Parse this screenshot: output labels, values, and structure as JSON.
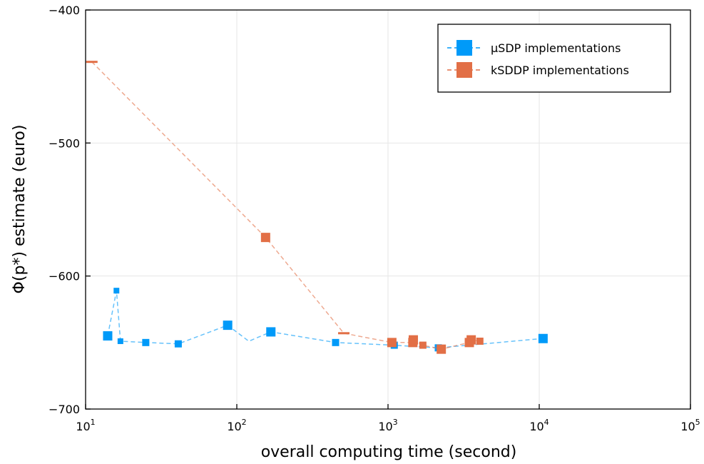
{
  "chart_data": {
    "type": "scatter",
    "title": "",
    "xlabel": "overall computing time (second)",
    "ylabel": "Φ(p*) estimate (euro)",
    "x_scale": "log10",
    "xlim": [
      10,
      100000
    ],
    "ylim": [
      -700,
      -400
    ],
    "grid": true,
    "legend_position": "top-right",
    "x_ticks": [
      {
        "base": "10",
        "exp": "1",
        "value": 10
      },
      {
        "base": "10",
        "exp": "2",
        "value": 100
      },
      {
        "base": "10",
        "exp": "3",
        "value": 1000
      },
      {
        "base": "10",
        "exp": "4",
        "value": 10000
      },
      {
        "base": "10",
        "exp": "5",
        "value": 100000
      }
    ],
    "y_ticks": [
      {
        "label": "−400",
        "value": -400
      },
      {
        "label": "−500",
        "value": -500
      },
      {
        "label": "−600",
        "value": -600
      },
      {
        "label": "−700",
        "value": -700
      }
    ],
    "series": [
      {
        "name": "µSDP implementations",
        "color": "#009af9",
        "marker": "square",
        "line": "dashed",
        "points": [
          {
            "x": 14,
            "y": -645,
            "size": "large"
          },
          {
            "x": 16,
            "y": -611,
            "size": "small"
          },
          {
            "x": 17,
            "y": -649,
            "size": "small"
          },
          {
            "x": 25,
            "y": -650,
            "size": "medium"
          },
          {
            "x": 41,
            "y": -651,
            "size": "medium"
          },
          {
            "x": 87,
            "y": -637,
            "size": "large"
          },
          {
            "x": 120,
            "y": -649,
            "size": "none"
          },
          {
            "x": 168,
            "y": -642,
            "size": "large"
          },
          {
            "x": 450,
            "y": -650,
            "size": "medium"
          },
          {
            "x": 1100,
            "y": -652,
            "size": "medium"
          },
          {
            "x": 2150,
            "y": -654,
            "size": "medium"
          },
          {
            "x": 10600,
            "y": -647,
            "size": "large"
          }
        ]
      },
      {
        "name": "kSDDP implementations",
        "color": "#e26f46",
        "marker": "square",
        "line": "dashed",
        "points": [
          {
            "x": 11,
            "y": -439,
            "size": "dash"
          },
          {
            "x": 155,
            "y": -571,
            "size": "large"
          },
          {
            "x": 510,
            "y": -643,
            "size": "dash"
          },
          {
            "x": 1060,
            "y": -650,
            "size": "large"
          },
          {
            "x": 1460,
            "y": -650,
            "size": "large"
          },
          {
            "x": 1470,
            "y": -648,
            "size": "large"
          },
          {
            "x": 1700,
            "y": -652,
            "size": "medium"
          },
          {
            "x": 2250,
            "y": -655,
            "size": "large"
          },
          {
            "x": 3450,
            "y": -650,
            "size": "large"
          },
          {
            "x": 3550,
            "y": -648,
            "size": "large"
          },
          {
            "x": 4050,
            "y": -649,
            "size": "medium"
          }
        ]
      }
    ]
  }
}
